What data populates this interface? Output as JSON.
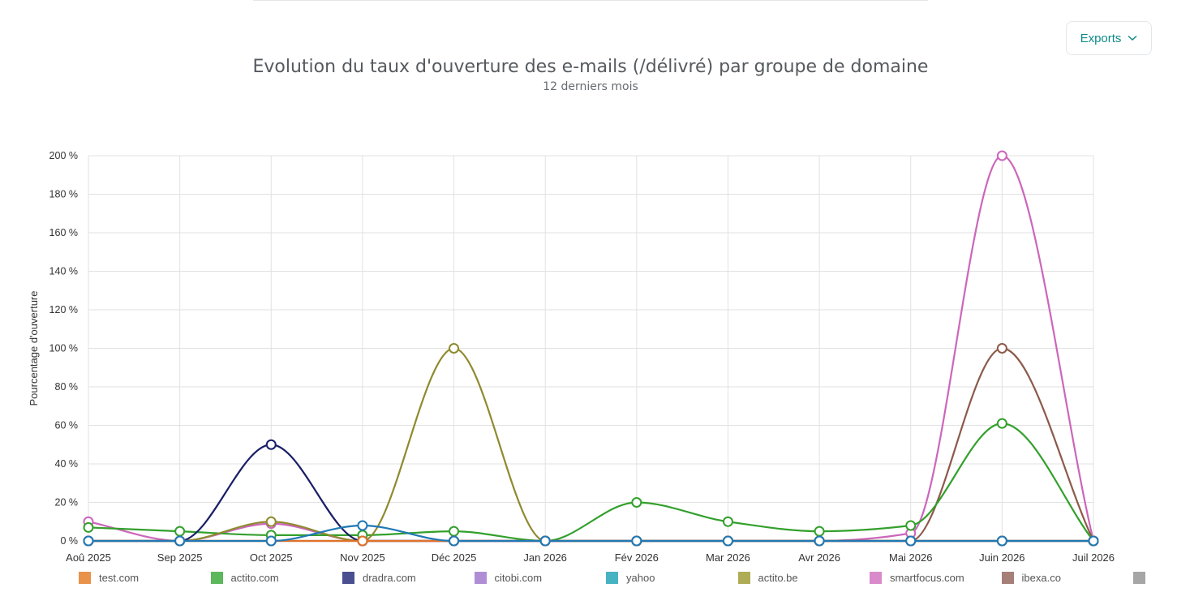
{
  "exports": {
    "label": "Exports"
  },
  "chart_data": {
    "type": "line",
    "title": "Evolution du taux d'ouverture des e-mails (/délivré) par groupe de domaine",
    "subtitle": "12 derniers mois",
    "ylabel": "Pourcentage d'ouverture",
    "xlabel": "",
    "ylim": [
      0,
      200
    ],
    "y_ticks": [
      "0 %",
      "20 %",
      "40 %",
      "60 %",
      "80 %",
      "100 %",
      "120 %",
      "140 %",
      "160 %",
      "180 %",
      "200 %"
    ],
    "grid": true,
    "legend_position": "bottom",
    "categories": [
      "Aoû 2025",
      "Sep 2025",
      "Oct 2025",
      "Nov 2025",
      "Déc 2025",
      "Jan 2026",
      "Fév 2026",
      "Mar 2026",
      "Avr 2026",
      "Mai 2026",
      "Juin 2026",
      "Juil 2026"
    ],
    "series": [
      {
        "name": "smartfocus.com",
        "color": "#cc66bb",
        "values": [
          10,
          0,
          9,
          0,
          0,
          0,
          0,
          0,
          0,
          4,
          200,
          0
        ]
      },
      {
        "name": "ibexa.co",
        "color": "#8c5a4a",
        "values": [
          0,
          0,
          0,
          0,
          0,
          0,
          0,
          0,
          0,
          0,
          100,
          0
        ]
      },
      {
        "name": "actito.com",
        "color": "#33a02c",
        "values": [
          7,
          5,
          3,
          3,
          5,
          0,
          20,
          10,
          5,
          8,
          61,
          0
        ]
      },
      {
        "name": "actito.be",
        "color": "#8f8a2e",
        "values": [
          0,
          0,
          10,
          0,
          100,
          0,
          0,
          0,
          0,
          0,
          0,
          0
        ]
      },
      {
        "name": "dradra.com",
        "color": "#1a1f66",
        "values": [
          0,
          0,
          50,
          0,
          0,
          0,
          0,
          0,
          0,
          0,
          0,
          0
        ]
      },
      {
        "name": "test.com",
        "color": "#e0722a",
        "values": [
          0,
          0,
          0,
          0,
          0,
          0,
          0,
          0,
          0,
          0,
          0,
          0
        ]
      },
      {
        "name": "yahoo",
        "color": "#1f78b4",
        "values": [
          0,
          0,
          0,
          8,
          0,
          0,
          0,
          0,
          0,
          0,
          0,
          0
        ]
      }
    ],
    "legend": [
      {
        "name": "test.com",
        "color": "#e8924a"
      },
      {
        "name": "actito.com",
        "color": "#5cb85c"
      },
      {
        "name": "dradra.com",
        "color": "#4a4f91"
      },
      {
        "name": "citobi.com",
        "color": "#b08ed6"
      },
      {
        "name": "yahoo",
        "color": "#47b3c2"
      },
      {
        "name": "actito.be",
        "color": "#aead55"
      },
      {
        "name": "smartfocus.com",
        "color": "#d98acb"
      },
      {
        "name": "ibexa.co",
        "color": "#a67f78"
      },
      {
        "name": "",
        "color": "#a6a6a6"
      }
    ]
  }
}
